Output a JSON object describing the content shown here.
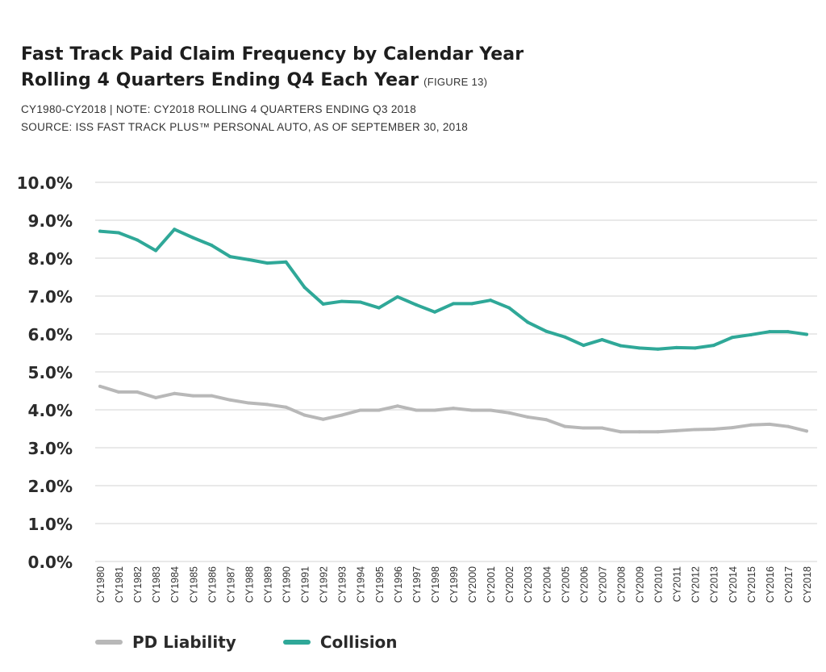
{
  "title": {
    "line1": "Fast Track Paid Claim Frequency by Calendar Year",
    "line2": "Rolling 4 Quarters Ending Q4 Each Year",
    "figure": "(FIGURE 13)"
  },
  "subtitle": {
    "line1": "CY1980-CY2018  |  NOTE: CY2018 ROLLING 4 QUARTERS ENDING Q3 2018",
    "line2": "SOURCE: ISS FAST TRACK PLUS™ PERSONAL AUTO, AS OF SEPTEMBER 30, 2018"
  },
  "legend": {
    "pd": "PD Liability",
    "collision": "Collision"
  },
  "colors": {
    "pd": "#b8b8b8",
    "collision": "#2fa898",
    "grid": "#dcdcdc",
    "axis_text": "#333333"
  },
  "chart_data": {
    "type": "line",
    "ylim": [
      0,
      10
    ],
    "yticks": [
      "0.0%",
      "1.0%",
      "2.0%",
      "3.0%",
      "4.0%",
      "5.0%",
      "6.0%",
      "7.0%",
      "8.0%",
      "9.0%",
      "10.0%"
    ],
    "grid": true,
    "legend_position": "bottom-left",
    "categories": [
      "CY1980",
      "CY1981",
      "CY1982",
      "CY1983",
      "CY1984",
      "CY1985",
      "CY1986",
      "CY1987",
      "CY1988",
      "CY1989",
      "CY1990",
      "CY1991",
      "CY1992",
      "CY1993",
      "CY1994",
      "CY1995",
      "CY1996",
      "CY1997",
      "CY1998",
      "CY1999",
      "CY2000",
      "CY2001",
      "CY2002",
      "CY2003",
      "CY2004",
      "CY2005",
      "CY2006",
      "CY2007",
      "CY2008",
      "CY2009",
      "CY2010",
      "CY2011",
      "CY2012",
      "CY2013",
      "CY2014",
      "CY2015",
      "CY2016",
      "CY2017",
      "CY2018"
    ],
    "series": [
      {
        "name": "PD Liability",
        "key": "pd",
        "values": [
          4.62,
          4.47,
          4.47,
          4.32,
          4.43,
          4.37,
          4.37,
          4.26,
          4.18,
          4.14,
          4.07,
          3.86,
          3.75,
          3.86,
          3.99,
          3.99,
          4.1,
          3.99,
          3.99,
          4.04,
          3.99,
          3.99,
          3.92,
          3.81,
          3.74,
          3.56,
          3.52,
          3.52,
          3.42,
          3.42,
          3.42,
          3.45,
          3.48,
          3.49,
          3.53,
          3.6,
          3.62,
          3.56,
          3.44
        ]
      },
      {
        "name": "Collision",
        "key": "collision",
        "values": [
          8.71,
          8.67,
          8.48,
          8.2,
          8.76,
          8.54,
          8.34,
          8.04,
          7.96,
          7.87,
          7.9,
          7.23,
          6.79,
          6.86,
          6.84,
          6.69,
          6.98,
          6.77,
          6.58,
          6.8,
          6.8,
          6.89,
          6.69,
          6.31,
          6.07,
          5.92,
          5.7,
          5.85,
          5.69,
          5.63,
          5.6,
          5.64,
          5.63,
          5.7,
          5.91,
          5.98,
          6.06,
          6.06,
          5.99
        ]
      }
    ]
  }
}
